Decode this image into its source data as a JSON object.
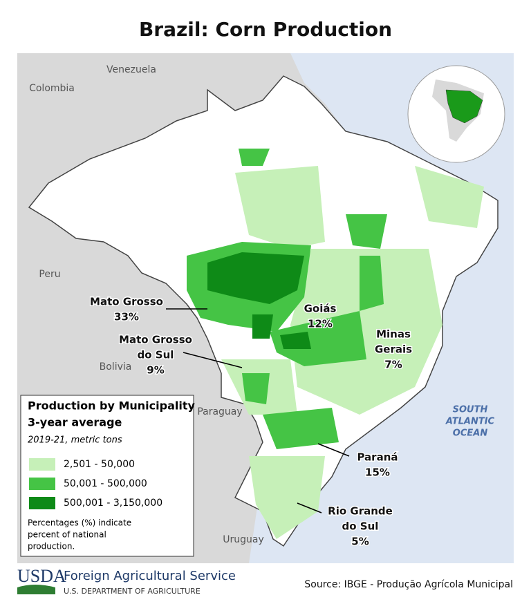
{
  "title": "Brazil: Corn Production",
  "countries": [
    "Venezuela",
    "Colombia",
    "Peru",
    "Bolivia",
    "Paraguay",
    "Uruguay"
  ],
  "ocean": [
    "SOUTH",
    "ATLANTIC",
    "OCEAN"
  ],
  "states": [
    {
      "name": [
        "Mato Grosso"
      ],
      "share": "33%"
    },
    {
      "name": [
        "Goiás"
      ],
      "share": "12%"
    },
    {
      "name": [
        "Minas",
        "Gerais"
      ],
      "share": "7%"
    },
    {
      "name": [
        "Mato Grosso",
        "do Sul"
      ],
      "share": "9%"
    },
    {
      "name": [
        "Paraná"
      ],
      "share": "15%"
    },
    {
      "name": [
        "Rio Grande",
        "do Sul"
      ],
      "share": "5%"
    }
  ],
  "legend": {
    "title": [
      "Production by Municipality",
      "3-year average"
    ],
    "subtitle": "2019-21, metric tons",
    "items": [
      {
        "label": "2,501 - 50,000",
        "color": "#c6f0b8"
      },
      {
        "label": "50,001 - 500,000",
        "color": "#45c445"
      },
      {
        "label": "500,001 - 3,150,000",
        "color": "#0e8a17"
      }
    ],
    "note": [
      "Percentages (%) indicate",
      "percent of national",
      "production."
    ]
  },
  "footer": {
    "logo": "USDA",
    "agency": "Foreign Agricultural Service",
    "department": "U.S. DEPARTMENT OF AGRICULTURE",
    "source": "Source: IBGE - Produção Agrícola Municipal"
  }
}
